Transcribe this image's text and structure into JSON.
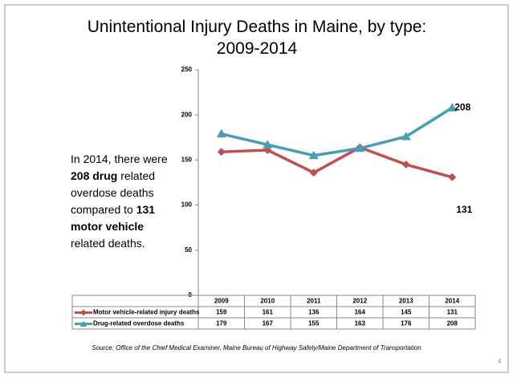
{
  "chart_data": {
    "type": "line",
    "title": "Unintentional Injury Deaths in Maine, by type: 2009-2014",
    "categories": [
      "2009",
      "2010",
      "2011",
      "2012",
      "2013",
      "2014"
    ],
    "series": [
      {
        "name": "Motor vehicle-related injury deaths",
        "color": "#c0504d",
        "marker": "diamond",
        "values": [
          159,
          161,
          136,
          164,
          145,
          131
        ]
      },
      {
        "name": "Drug-related overdose deaths",
        "color": "#4a9db3",
        "marker": "triangle",
        "values": [
          179,
          167,
          155,
          163,
          176,
          208
        ]
      }
    ],
    "ylim": [
      0,
      250
    ],
    "yticks": [
      0,
      50,
      100,
      150,
      200,
      250
    ],
    "grid": false,
    "data_table": true,
    "annotation": [
      {
        "text": "In 2014, there were ",
        "bold": false
      },
      {
        "text": "208",
        "bold": true
      },
      {
        "text": " ",
        "bold": false
      },
      {
        "text": "drug",
        "bold": true
      },
      {
        "text": " related overdose deaths compared to ",
        "bold": false
      },
      {
        "text": "131",
        "bold": true
      },
      {
        "text": " ",
        "bold": false
      },
      {
        "text": "motor vehicle",
        "bold": true
      },
      {
        "text": " related deaths.",
        "bold": false
      }
    ],
    "source": "Source: Office of the Chief Medical Examiner, Maine Bureau of Highway Safety/Maine Department of Transportation",
    "page_number": "4"
  }
}
